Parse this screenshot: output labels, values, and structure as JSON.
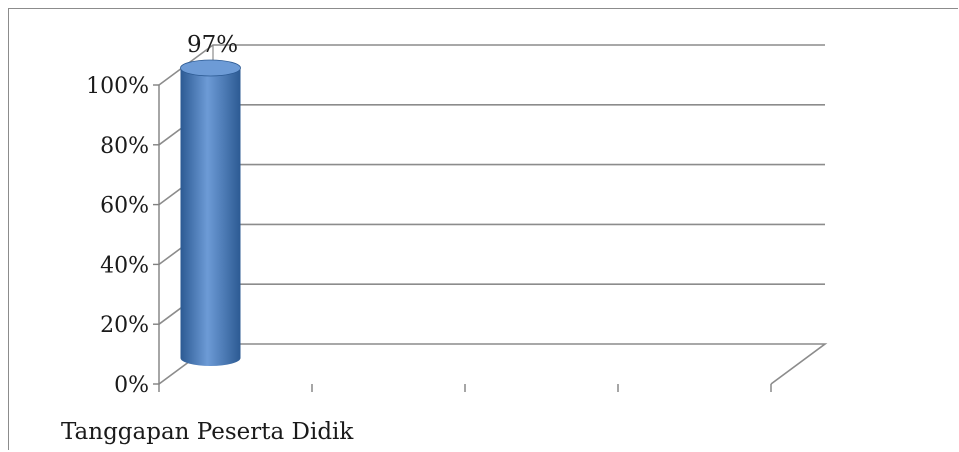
{
  "chart_data": {
    "type": "bar",
    "variant": "3d-cylinder",
    "categories": [
      "Tanggapan Peserta Didik"
    ],
    "series": [
      {
        "values": [
          97
        ]
      }
    ],
    "data_labels": [
      "97%"
    ],
    "y_ticks": [
      "0%",
      "20%",
      "40%",
      "60%",
      "80%",
      "100%"
    ],
    "ylim": [
      0,
      100
    ],
    "y_format": "percent",
    "title": "",
    "xlabel": "",
    "ylabel": "",
    "grid": true,
    "legend": "none",
    "colors": {
      "bar": "#4f81bd",
      "bar_dark": "#2c5a93",
      "bar_top": "#6d9bd6",
      "grid": "#8c8c8c",
      "axis": "#808080"
    }
  }
}
